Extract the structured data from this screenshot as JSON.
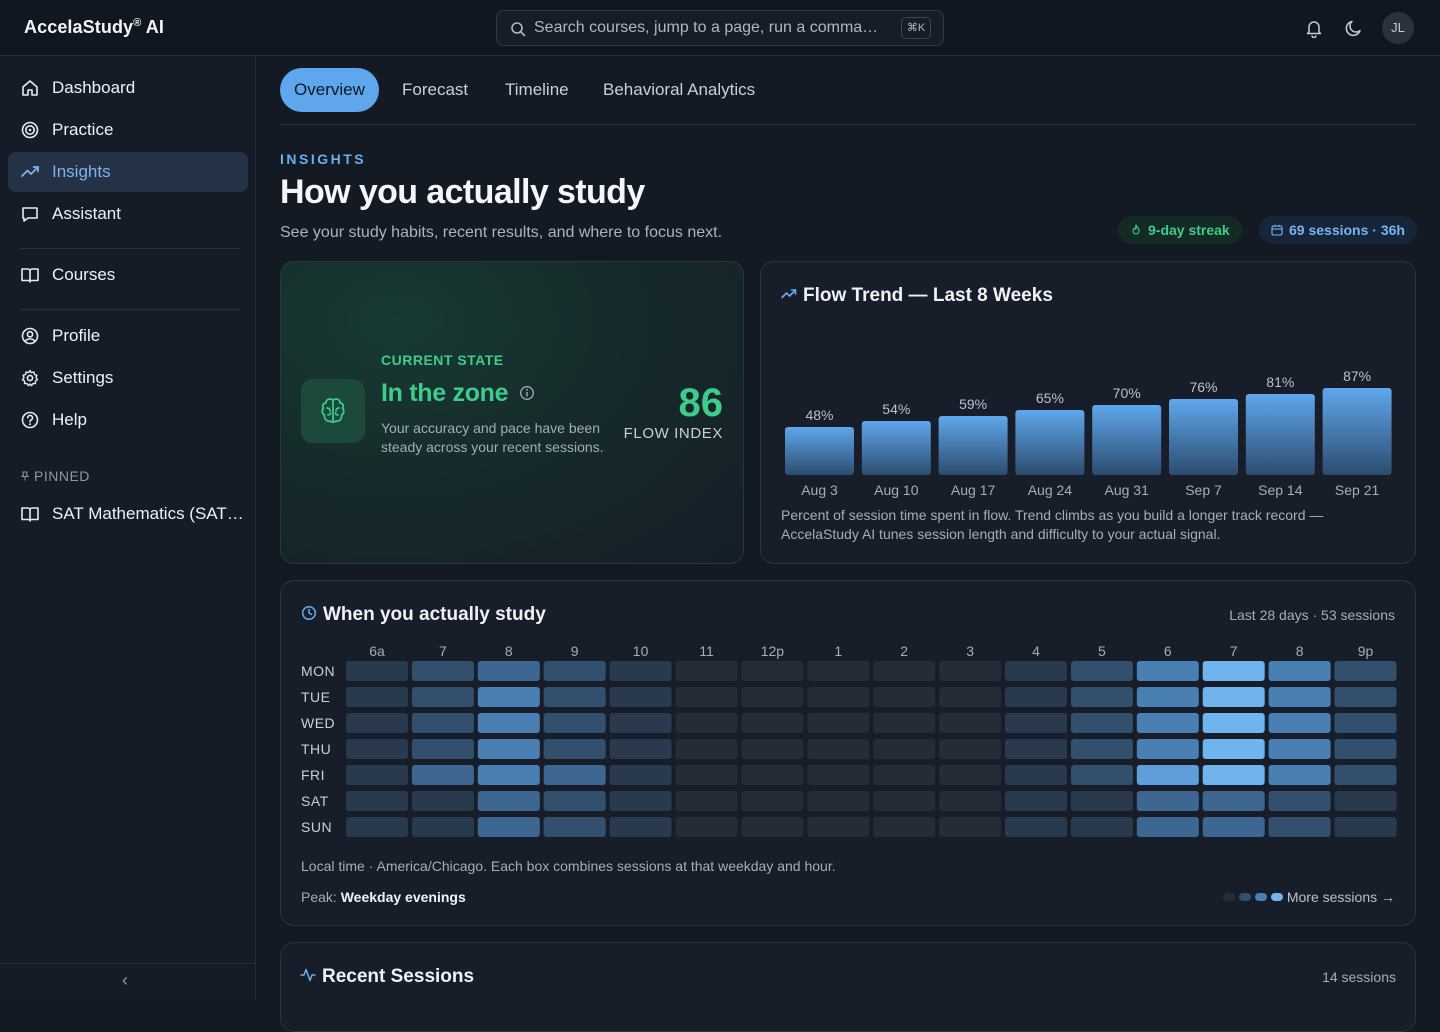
{
  "app": {
    "brand": "AccelaStudy",
    "brand_mark": "®",
    "brand_suffix": " AI",
    "search_placeholder": "Search courses, jump to a page, run a comma…",
    "search_shortcut": "⌘K",
    "avatar_initials": "JL"
  },
  "sidebar": {
    "items": [
      {
        "label": "Dashboard",
        "icon": "home-icon"
      },
      {
        "label": "Practice",
        "icon": "target-icon"
      },
      {
        "label": "Insights",
        "icon": "trending-up-icon",
        "active": true
      },
      {
        "label": "Assistant",
        "icon": "chat-icon"
      },
      {
        "label": "Courses",
        "icon": "book-icon"
      },
      {
        "label": "Profile",
        "icon": "user-circle-icon"
      },
      {
        "label": "Settings",
        "icon": "gear-icon"
      },
      {
        "label": "Help",
        "icon": "help-icon"
      }
    ],
    "pinned_label": "PINNED",
    "pinned_items": [
      {
        "label": "SAT Mathematics (SAT…",
        "icon": "book-icon"
      }
    ],
    "collapse_glyph": "‹"
  },
  "tabs": [
    {
      "label": "Overview",
      "active": true
    },
    {
      "label": "Forecast"
    },
    {
      "label": "Timeline"
    },
    {
      "label": "Behavioral Analytics"
    }
  ],
  "header": {
    "eyebrow": "INSIGHTS",
    "title": "How you actually study",
    "subtitle": "See your study habits, recent results, and where to focus next.",
    "streak": "9-day streak",
    "sessions_summary": "69 sessions · 36h"
  },
  "current_state": {
    "label": "CURRENT STATE",
    "title": "In the zone",
    "description": "Your accuracy and pace have been steady across your recent sessions.",
    "flow_index": "86",
    "flow_label": "FLOW INDEX"
  },
  "flow_trend": {
    "title": "Flow Trend — Last 8 Weeks",
    "note": "Percent of session time spent in flow. Trend climbs as you build a longer track record — AccelaStudy AI tunes session length and difficulty to your actual signal."
  },
  "heatmap": {
    "title": "When you actually study",
    "meta": "Last 28 days · 53 sessions",
    "footnote": "Local time · America/Chicago. Each box combines sessions at that weekday and hour.",
    "peak_label": "Peak: ",
    "peak_value": "Weekday evenings",
    "legend_label": "More sessions →"
  },
  "recent": {
    "title": "Recent Sessions",
    "count": "14 sessions"
  },
  "colors": {
    "accent": "#5fa7ec",
    "success": "#3fcb8b",
    "heat_levels": [
      "#252c37",
      "#2a3a4e",
      "#32506e",
      "#3d6690",
      "#4a7fb3",
      "#5f9edb",
      "#6fb3ef"
    ]
  },
  "chart_data": [
    {
      "type": "bar",
      "title": "Flow Trend — Last 8 Weeks",
      "categories": [
        "Aug 3",
        "Aug 10",
        "Aug 17",
        "Aug 24",
        "Aug 31",
        "Sep 7",
        "Sep 14",
        "Sep 21"
      ],
      "values": [
        48,
        54,
        59,
        65,
        70,
        76,
        81,
        87
      ],
      "value_suffix": "%",
      "xlabel": "",
      "ylabel": "",
      "ylim": [
        0,
        100
      ],
      "grid": false
    },
    {
      "type": "heatmap",
      "title": "When you actually study",
      "x": [
        "6a",
        "7",
        "8",
        "9",
        "10",
        "11",
        "12p",
        "1",
        "2",
        "3",
        "4",
        "5",
        "6",
        "7",
        "8",
        "9p"
      ],
      "y": [
        "MON",
        "TUE",
        "WED",
        "THU",
        "FRI",
        "SAT",
        "SUN"
      ],
      "levels": [
        [
          1,
          2,
          3,
          2,
          1,
          0,
          0,
          0,
          0,
          0,
          1,
          2,
          4,
          6,
          4,
          2
        ],
        [
          1,
          2,
          4,
          2,
          1,
          0,
          0,
          0,
          0,
          0,
          1,
          2,
          4,
          6,
          4,
          2
        ],
        [
          1,
          2,
          4,
          2,
          1,
          0,
          0,
          0,
          0,
          0,
          1,
          2,
          4,
          6,
          4,
          2
        ],
        [
          1,
          2,
          4,
          2,
          1,
          0,
          0,
          0,
          0,
          0,
          1,
          2,
          4,
          6,
          4,
          2
        ],
        [
          1,
          3,
          4,
          3,
          1,
          0,
          0,
          0,
          0,
          0,
          1,
          2,
          5,
          6,
          4,
          2
        ],
        [
          1,
          1,
          3,
          2,
          1,
          0,
          0,
          0,
          0,
          0,
          1,
          1,
          3,
          3,
          2,
          1
        ],
        [
          1,
          1,
          3,
          2,
          1,
          0,
          0,
          0,
          0,
          0,
          1,
          1,
          3,
          3,
          2,
          1
        ]
      ],
      "scale_max": 6,
      "grid": false
    }
  ]
}
